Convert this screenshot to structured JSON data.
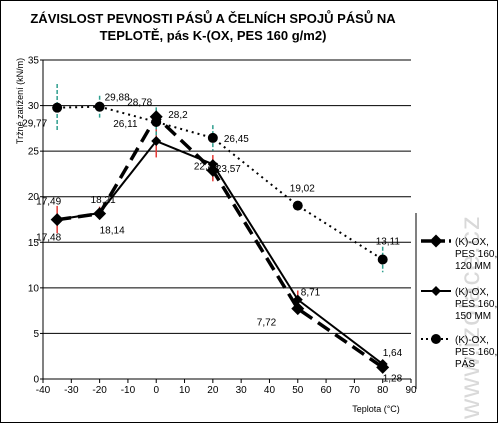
{
  "chart_data": {
    "type": "line",
    "title_line1": "ZÁVISLOST PEVNOSTI PÁSŮ A ČELNÍCH SPOJŮ PÁSŮ   NA",
    "title_line2": "TEPLOTĚ, pás K-(OX, PES 160 g/m2)",
    "xlabel": "Teplota (°C)",
    "ylabel": "Tržné zatížení (kN/m)",
    "xlim": [
      -40,
      90
    ],
    "ylim": [
      0,
      35
    ],
    "xticks": [
      -40,
      -30,
      -20,
      -10,
      0,
      10,
      20,
      30,
      40,
      50,
      60,
      70,
      80,
      90
    ],
    "yticks": [
      0,
      5,
      10,
      15,
      20,
      25,
      30,
      35
    ],
    "grid": "horizontal",
    "legend_position": "right",
    "watermark": "www.izolace.cz",
    "colors": {
      "series_line": "#000000",
      "error_bar_red": "#e53935",
      "error_bar_teal": "#2e9e8e",
      "grid": "#000000",
      "plot_background": "#ffffff"
    },
    "series": [
      {
        "name": "(K)-OX, PES 160, 120 MM",
        "legend_lines": [
          "(K)-OX,",
          "PES 160,",
          "120 MM"
        ],
        "line_style": "long-dash",
        "marker": "diamond-large",
        "x": [
          -35,
          -20,
          0,
          20,
          50,
          80
        ],
        "y": [
          17.48,
          18.14,
          28.78,
          22.89,
          7.72,
          1.28
        ],
        "labels": [
          "17,48",
          "18,14",
          "28,78",
          "22,89",
          "7,72",
          "1,28"
        ],
        "errors": [
          null,
          null,
          null,
          1.2,
          null,
          null
        ],
        "error_color": "red"
      },
      {
        "name": "(K)-OX, PES 160, 150 MM",
        "legend_lines": [
          "(K)-OX,",
          "PES 160,",
          "150 MM"
        ],
        "line_style": "solid",
        "marker": "diamond",
        "x": [
          -35,
          -20,
          0,
          20,
          50,
          80
        ],
        "y": [
          17.49,
          18.21,
          26.11,
          23.57,
          8.71,
          1.64
        ],
        "labels": [
          "17,49",
          "18,21",
          "26,11",
          "23,57",
          "8,71",
          "1,64"
        ],
        "errors": [
          1.5,
          0.7,
          1.8,
          1.0,
          1.0,
          null
        ],
        "error_color": "red"
      },
      {
        "name": "(K)-OX, PES 160, PÁS",
        "legend_lines": [
          "(K)-OX,",
          "PES 160,",
          "PÁS"
        ],
        "line_style": "dotted",
        "marker": "circle",
        "x": [
          -35,
          -20,
          0,
          20,
          50,
          80
        ],
        "y": [
          29.77,
          29.88,
          28.2,
          26.45,
          19.02,
          13.11
        ],
        "labels": [
          "29,77",
          "29,88",
          "28,2",
          "26,45",
          "19,02",
          "13,11"
        ],
        "errors": [
          2.6,
          1.2,
          1.6,
          1.4,
          null,
          1.4
        ],
        "error_color": "teal"
      }
    ]
  }
}
